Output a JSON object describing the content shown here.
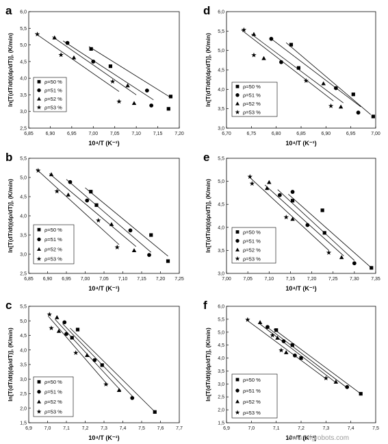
{
  "chart_data": [
    {
      "panel": "a",
      "type": "scatter",
      "xlabel": "10⁴/T (K⁻¹)",
      "ylabel": "ln[T(dT/dt)(dρ/dT)], (K/min)",
      "xlim": [
        6.85,
        7.2
      ],
      "ylim": [
        2.5,
        6.0
      ],
      "xticks": [
        "6,85",
        "6,90",
        "6,95",
        "7,00",
        "7,05",
        "7,10",
        "7,15",
        "7,20"
      ],
      "yticks": [
        "2,5",
        "3,0",
        "3,5",
        "4,0",
        "4,5",
        "5,0",
        "5,5",
        "6,0"
      ],
      "legend": [
        "ρ=50 %",
        "ρ=51 %",
        "ρ=52 %",
        "ρ=53 %"
      ],
      "series": [
        {
          "name": "ρ=50 %",
          "marker": "square",
          "x": [
            6.995,
            7.04,
            7.175,
            7.18
          ],
          "y": [
            4.88,
            4.36,
            3.08,
            3.45
          ],
          "fit": [
            [
              6.99,
              4.95
            ],
            [
              7.18,
              3.42
            ]
          ]
        },
        {
          "name": "ρ=51 %",
          "marker": "circle",
          "x": [
            6.94,
            7.0,
            7.125,
            7.135
          ],
          "y": [
            5.06,
            4.5,
            3.63,
            3.18
          ],
          "fit": [
            [
              6.93,
              5.12
            ],
            [
              7.14,
              3.35
            ]
          ]
        },
        {
          "name": "ρ=52 %",
          "marker": "triangle",
          "x": [
            6.91,
            6.955,
            7.08,
            7.095
          ],
          "y": [
            5.22,
            4.62,
            3.78,
            3.25
          ],
          "fit": [
            [
              6.905,
              5.25
            ],
            [
              7.1,
              3.5
            ]
          ]
        },
        {
          "name": "ρ=53 %",
          "marker": "star",
          "x": [
            6.87,
            6.925,
            7.045,
            7.06
          ],
          "y": [
            5.32,
            4.7,
            3.9,
            3.3
          ],
          "fit": [
            [
              6.865,
              5.35
            ],
            [
              7.06,
              3.6
            ]
          ]
        }
      ]
    },
    {
      "panel": "d",
      "type": "scatter",
      "xlabel": "10⁴/T (K⁻¹)",
      "ylabel": "ln[T(dT/dt)(dρ/dT)], (K/min)",
      "xlim": [
        6.7,
        7.0
      ],
      "ylim": [
        3.0,
        6.0
      ],
      "xticks": [
        "6,70",
        "6,75",
        "6,80",
        "6,85",
        "6,90",
        "6,95",
        "7,00"
      ],
      "yticks": [
        "3,0",
        "3,5",
        "4,0",
        "4,5",
        "5,0",
        "5,5",
        "6,0"
      ],
      "legend": [
        "ρ=50 %",
        "ρ=51 %",
        "ρ=52 %",
        "ρ=53 %"
      ],
      "series": [
        {
          "name": "ρ=50 %",
          "marker": "square",
          "x": [
            6.83,
            6.845,
            6.955,
            6.995
          ],
          "y": [
            5.15,
            4.55,
            3.87,
            3.3
          ],
          "fit": [
            [
              6.82,
              5.2
            ],
            [
              6.99,
              3.35
            ]
          ]
        },
        {
          "name": "ρ=51 %",
          "marker": "circle",
          "x": [
            6.79,
            6.81,
            6.92,
            6.965
          ],
          "y": [
            5.3,
            4.7,
            4.03,
            3.4
          ],
          "fit": [
            [
              6.79,
              5.3
            ],
            [
              6.97,
              3.55
            ]
          ]
        },
        {
          "name": "ρ=52 %",
          "marker": "triangle",
          "x": [
            6.755,
            6.775,
            6.895,
            6.93
          ],
          "y": [
            5.42,
            4.8,
            4.15,
            3.55
          ],
          "fit": [
            [
              6.75,
              5.42
            ],
            [
              6.935,
              3.65
            ]
          ]
        },
        {
          "name": "ρ=53 %",
          "marker": "star",
          "x": [
            6.735,
            6.755,
            6.86,
            6.91
          ],
          "y": [
            5.53,
            4.88,
            4.22,
            3.57
          ],
          "fit": [
            [
              6.73,
              5.53
            ],
            [
              6.915,
              3.7
            ]
          ]
        }
      ]
    },
    {
      "panel": "b",
      "type": "scatter",
      "xlabel": "10⁴/T (K⁻¹)",
      "ylabel": "ln[T(dT/dt)(dρ/dT)], (K/min)",
      "xlim": [
        6.85,
        7.25
      ],
      "ylim": [
        2.5,
        5.5
      ],
      "xticks": [
        "6,85",
        "6,90",
        "6,95",
        "7,00",
        "7,05",
        "7,10",
        "7,15",
        "7,20",
        "7,25"
      ],
      "yticks": [
        "2,5",
        "3,0",
        "3,5",
        "4,0",
        "4,5",
        "5,0",
        "5,5"
      ],
      "legend": [
        "ρ=50 %",
        "ρ=51 %",
        "ρ=52 %",
        "ρ=53 %"
      ],
      "series": [
        {
          "name": "ρ=50 %",
          "marker": "square",
          "x": [
            7.015,
            7.03,
            7.175,
            7.22
          ],
          "y": [
            4.63,
            4.28,
            3.5,
            2.82
          ],
          "fit": [
            [
              7.0,
              4.73
            ],
            [
              7.22,
              2.95
            ]
          ]
        },
        {
          "name": "ρ=51 %",
          "marker": "circle",
          "x": [
            6.96,
            7.005,
            7.12,
            7.17
          ],
          "y": [
            4.88,
            4.4,
            3.62,
            2.98
          ],
          "fit": [
            [
              6.95,
              4.95
            ],
            [
              7.175,
              3.05
            ]
          ]
        },
        {
          "name": "ρ=52 %",
          "marker": "triangle",
          "x": [
            6.91,
            6.955,
            7.07,
            7.13
          ],
          "y": [
            5.08,
            4.55,
            3.78,
            3.1
          ],
          "fit": [
            [
              6.905,
              5.1
            ],
            [
              7.135,
              3.2
            ]
          ]
        },
        {
          "name": "ρ=53 %",
          "marker": "star",
          "x": [
            6.875,
            6.925,
            7.035,
            7.085
          ],
          "y": [
            5.18,
            4.64,
            3.88,
            3.18
          ],
          "fit": [
            [
              6.87,
              5.22
            ],
            [
              7.09,
              3.25
            ]
          ]
        }
      ]
    },
    {
      "panel": "e",
      "type": "scatter",
      "xlabel": "10⁴/T (K⁻¹)",
      "ylabel": "ln[T(dT/dt)(dρ/dT)], (K/min)",
      "xlim": [
        7.0,
        7.35
      ],
      "ylim": [
        3.0,
        5.5
      ],
      "xticks": [
        "7,00",
        "7,05",
        "7,10",
        "7,15",
        "7,20",
        "7,25",
        "7,30",
        "7,35"
      ],
      "yticks": [
        "3,0",
        "3,5",
        "4,0",
        "4,5",
        "5,0",
        "5,5"
      ],
      "legend": [
        "ρ=50 %",
        "ρ=51 %",
        "ρ=52 %",
        "ρ=53 %"
      ],
      "series": [
        {
          "name": "ρ=50 %",
          "marker": "square",
          "x": [
            7.155,
            7.225,
            7.23,
            7.34
          ],
          "y": [
            4.58,
            4.37,
            3.88,
            3.12
          ],
          "fit": [
            [
              7.145,
              4.72
            ],
            [
              7.34,
              3.12
            ]
          ]
        },
        {
          "name": "ρ=51 %",
          "marker": "circle",
          "x": [
            7.125,
            7.155,
            7.19,
            7.3
          ],
          "y": [
            4.7,
            4.77,
            4.05,
            3.22
          ],
          "fit": [
            [
              7.12,
              4.82
            ],
            [
              7.3,
              3.28
            ]
          ]
        },
        {
          "name": "ρ=52 %",
          "marker": "triangle",
          "x": [
            7.095,
            7.1,
            7.155,
            7.27
          ],
          "y": [
            4.85,
            4.98,
            4.18,
            3.35
          ],
          "fit": [
            [
              7.09,
              4.92
            ],
            [
              7.275,
              3.38
            ]
          ]
        },
        {
          "name": "ρ=53 %",
          "marker": "star",
          "x": [
            7.055,
            7.06,
            7.14,
            7.24
          ],
          "y": [
            5.1,
            4.95,
            4.22,
            3.45
          ],
          "fit": [
            [
              7.055,
              5.08
            ],
            [
              7.24,
              3.5
            ]
          ]
        }
      ]
    },
    {
      "panel": "c",
      "type": "scatter",
      "xlabel": "10⁴/T (K⁻¹)",
      "ylabel": "ln[T(dT/dt)(dρ/dT)], (K/min)",
      "xlim": [
        6.9,
        7.7
      ],
      "ylim": [
        1.5,
        5.5
      ],
      "xticks": [
        "6,9",
        "7,0",
        "7,1",
        "7,2",
        "7,3",
        "7,4",
        "7,5",
        "7,6",
        "7,7"
      ],
      "yticks": [
        "1,5",
        "2,0",
        "2,5",
        "3,0",
        "3,5",
        "4,0",
        "4,5",
        "5,0",
        "5,5"
      ],
      "legend": [
        "ρ=50 %",
        "ρ=51 %",
        "ρ=52 %",
        "ρ=53 %"
      ],
      "series": [
        {
          "name": "ρ=50 %",
          "marker": "square",
          "x": [
            7.13,
            7.16,
            7.29,
            7.57
          ],
          "y": [
            4.42,
            4.7,
            3.48,
            1.87
          ],
          "fit": [
            [
              7.12,
              4.75
            ],
            [
              7.57,
              1.88
            ]
          ]
        },
        {
          "name": "ρ=51 %",
          "marker": "circle",
          "x": [
            7.09,
            7.1,
            7.25,
            7.45
          ],
          "y": [
            4.95,
            4.55,
            3.65,
            2.35
          ],
          "fit": [
            [
              7.08,
              4.9
            ],
            [
              7.46,
              2.35
            ]
          ]
        },
        {
          "name": "ρ=52 %",
          "marker": "triangle",
          "x": [
            7.05,
            7.06,
            7.21,
            7.38
          ],
          "y": [
            5.12,
            4.65,
            3.82,
            2.62
          ],
          "fit": [
            [
              7.04,
              5.05
            ],
            [
              7.39,
              2.6
            ]
          ]
        },
        {
          "name": "ρ=53 %",
          "marker": "star",
          "x": [
            7.01,
            7.02,
            7.15,
            7.31
          ],
          "y": [
            5.22,
            4.75,
            3.9,
            2.82
          ],
          "fit": [
            [
              7.005,
              5.15
            ],
            [
              7.32,
              2.8
            ]
          ]
        }
      ]
    },
    {
      "panel": "f",
      "type": "scatter",
      "xlabel": "10⁴/T (K⁻¹)",
      "ylabel": "ln[T(dT/dt)(dρ/dT)], (K/min)",
      "xlim": [
        6.9,
        7.5
      ],
      "ylim": [
        1.5,
        6.0
      ],
      "xticks": [
        "6,9",
        "7,0",
        "7,1",
        "7,2",
        "7,3",
        "7,4",
        "7,5"
      ],
      "yticks": [
        "1,5",
        "2,0",
        "2,5",
        "3,0",
        "3,5",
        "4,0",
        "4,5",
        "5,0",
        "5,5",
        "6,0"
      ],
      "legend": [
        "ρ=50 %",
        "ρ=51 %",
        "ρ=52 %",
        "ρ=53 %"
      ],
      "series": [
        {
          "name": "ρ=50 %",
          "marker": "square",
          "x": [
            7.1,
            7.165,
            7.2,
            7.44
          ],
          "y": [
            5.08,
            4.5,
            4.0,
            2.62
          ],
          "fit": [
            [
              7.09,
              5.12
            ],
            [
              7.44,
              2.62
            ]
          ]
        },
        {
          "name": "ρ=51 %",
          "marker": "circle",
          "x": [
            7.065,
            7.13,
            7.175,
            7.385
          ],
          "y": [
            5.2,
            4.65,
            4.1,
            2.88
          ],
          "fit": [
            [
              7.06,
              5.22
            ],
            [
              7.385,
              2.85
            ]
          ]
        },
        {
          "name": "ρ=52 %",
          "marker": "triangle",
          "x": [
            7.035,
            7.105,
            7.14,
            7.34
          ],
          "y": [
            5.38,
            4.78,
            4.22,
            3.08
          ],
          "fit": [
            [
              7.03,
              5.35
            ],
            [
              7.34,
              3.05
            ]
          ]
        },
        {
          "name": "ρ=53 %",
          "marker": "star",
          "x": [
            6.985,
            7.085,
            7.12,
            7.3
          ],
          "y": [
            5.48,
            4.88,
            4.3,
            3.22
          ],
          "fit": [
            [
              6.98,
              5.48
            ],
            [
              7.3,
              3.2
            ]
          ]
        }
      ]
    }
  ],
  "watermark": "www.mfgrobots.com"
}
